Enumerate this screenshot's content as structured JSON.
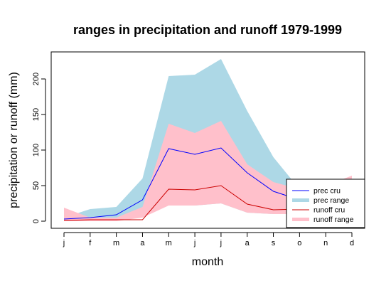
{
  "chart_data": {
    "type": "area",
    "title": "ranges in precipitation and runoff 1979-1999",
    "xlabel": "month",
    "ylabel": "precipitation or runoff (mm)",
    "categories": [
      "j",
      "f",
      "m",
      "a",
      "m",
      "j",
      "j",
      "a",
      "s",
      "o",
      "n",
      "d"
    ],
    "ylim": [
      -10,
      238
    ],
    "yticks": [
      0,
      50,
      100,
      150,
      200
    ],
    "legend_position": "bottom-right",
    "grid": false,
    "series": [
      {
        "name": "prec range",
        "kind": "band",
        "color": "#add8e6",
        "low": [
          3,
          3,
          3,
          15,
          22,
          22,
          25,
          12,
          10,
          10,
          12,
          20
        ],
        "high": [
          5,
          17,
          20,
          60,
          204,
          206,
          228,
          155,
          90,
          45,
          50,
          55
        ]
      },
      {
        "name": "runoff range",
        "kind": "band",
        "color": "#ffc0cb",
        "low": [
          0,
          0,
          0,
          5,
          22,
          22,
          25,
          12,
          10,
          10,
          12,
          20
        ],
        "high": [
          19,
          5,
          5,
          20,
          137,
          124,
          141,
          80,
          55,
          45,
          50,
          64
        ]
      },
      {
        "name": "prec cru",
        "kind": "line",
        "color": "#0000ff",
        "values": [
          3,
          5,
          9,
          30,
          102,
          94,
          103,
          68,
          42,
          30,
          null,
          null
        ]
      },
      {
        "name": "runoff cru",
        "kind": "line",
        "color": "#cc0000",
        "values": [
          1,
          2,
          2,
          2,
          45,
          44,
          50,
          24,
          16,
          17,
          null,
          null
        ]
      }
    ],
    "legend": [
      {
        "label": "prec cru",
        "kind": "line",
        "color": "#0000ff"
      },
      {
        "label": "prec range",
        "kind": "band",
        "color": "#add8e6"
      },
      {
        "label": "runoff cru",
        "kind": "line",
        "color": "#cc0000"
      },
      {
        "label": "runoff range",
        "kind": "band",
        "color": "#ffc0cb"
      }
    ]
  }
}
